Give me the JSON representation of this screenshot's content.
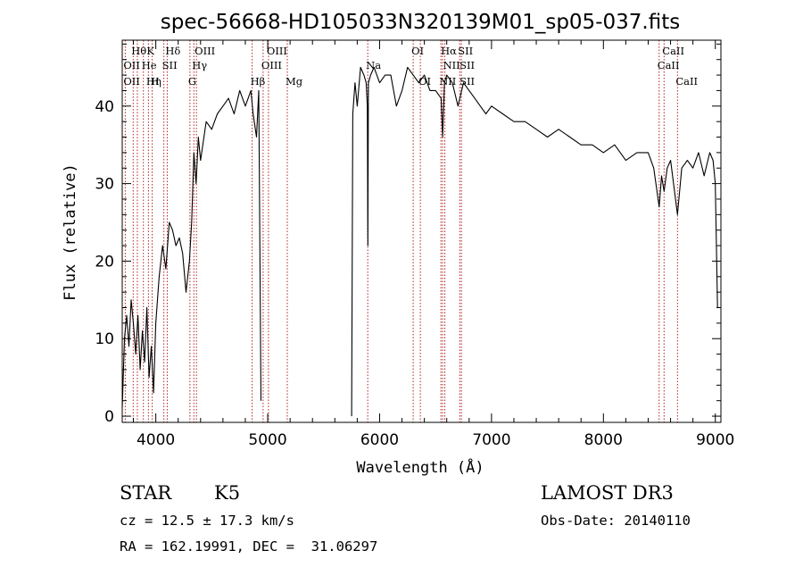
{
  "chart_data": {
    "type": "line",
    "title": "spec-56668-HD105033N320139M01_sp05-037.fits",
    "xlabel": "Wavelength (Å)",
    "ylabel": "Flux (relative)",
    "xlim": [
      3700,
      9050
    ],
    "ylim": [
      -0.8,
      48.5
    ],
    "xticks": [
      4000,
      5000,
      6000,
      7000,
      8000,
      9000
    ],
    "yticks": [
      0,
      10,
      20,
      30,
      40
    ],
    "grid": false,
    "series": [
      {
        "x": [
          3700,
          3720,
          3740,
          3760,
          3780,
          3800,
          3820,
          3840,
          3860,
          3880,
          3900,
          3920,
          3940,
          3960,
          3980,
          4000,
          4030,
          4060,
          4090,
          4120,
          4150,
          4180,
          4210,
          4240,
          4270,
          4300,
          4320,
          4340,
          4360,
          4380,
          4400,
          4450,
          4500,
          4550,
          4600,
          4650,
          4700,
          4750,
          4800,
          4850,
          4870,
          4900,
          4920,
          4940,
          4960,
          4980,
          5000,
          5050,
          5100,
          5200,
          5400,
          5600,
          5740,
          5750,
          5760,
          5780,
          5800,
          5830,
          5860,
          5880,
          5890,
          5895,
          5900,
          5920,
          5950,
          6000,
          6050,
          6100,
          6150,
          6200,
          6250,
          6300,
          6350,
          6400,
          6450,
          6500,
          6550,
          6563,
          6580,
          6600,
          6650,
          6700,
          6750,
          6800,
          6850,
          6900,
          6950,
          7000,
          7100,
          7200,
          7300,
          7400,
          7500,
          7600,
          7700,
          7800,
          7900,
          8000,
          8100,
          8200,
          8300,
          8400,
          8450,
          8498,
          8520,
          8542,
          8570,
          8600,
          8662,
          8700,
          8750,
          8800,
          8850,
          8900,
          8950,
          8980,
          9000,
          9020
        ],
        "y": [
          1,
          10,
          13,
          9,
          15,
          12,
          8,
          13,
          6,
          11,
          7,
          14,
          5,
          9,
          3,
          12,
          18,
          22,
          19,
          25,
          24,
          22,
          23,
          21,
          16,
          20,
          25,
          34,
          30,
          36,
          33,
          38,
          37,
          39,
          40,
          41,
          39,
          42,
          40,
          42,
          39,
          36,
          42,
          2,
          null,
          null,
          null,
          null,
          null,
          null,
          null,
          null,
          null,
          0,
          39,
          43,
          40,
          45,
          44,
          43,
          40,
          22,
          43,
          44,
          45,
          43,
          44,
          44,
          40,
          42,
          45,
          44,
          43,
          44,
          42,
          42,
          41,
          36,
          43,
          44,
          43,
          40,
          43,
          42,
          41,
          40,
          39,
          40,
          39,
          38,
          38,
          37,
          36,
          37,
          36,
          35,
          35,
          34,
          35,
          33,
          34,
          34,
          32,
          27,
          31,
          29,
          32,
          33,
          26,
          32,
          33,
          32,
          34,
          31,
          34,
          33,
          30,
          14
        ]
      }
    ],
    "line_markers": [
      {
        "label": "Hθ",
        "wavelength": 3798,
        "row": 1,
        "offset": 0
      },
      {
        "label": "OII",
        "wavelength": 3727,
        "row": 2,
        "offset": 0
      },
      {
        "label": "OII",
        "wavelength": 3727,
        "row": 3,
        "offset": 0
      },
      {
        "label": "Hη",
        "wavelength": 3835,
        "row": 3,
        "offset": 12
      },
      {
        "label": "He",
        "wavelength": 3889,
        "row": 2,
        "offset": 0
      },
      {
        "label": "K",
        "wavelength": 3934,
        "row": 1,
        "offset": 0
      },
      {
        "label": "H",
        "wavelength": 3968,
        "row": 3,
        "offset": 0
      },
      {
        "label": "SII",
        "wavelength": 4072,
        "row": 2,
        "offset": 0
      },
      {
        "label": "Hδ",
        "wavelength": 4102,
        "row": 1,
        "offset": 0
      },
      {
        "label": "G",
        "wavelength": 4305,
        "row": 3,
        "offset": 0
      },
      {
        "label": "Hγ",
        "wavelength": 4340,
        "row": 2,
        "offset": 0
      },
      {
        "label": "OIII",
        "wavelength": 4363,
        "row": 1,
        "offset": 0
      },
      {
        "label": "Hβ",
        "wavelength": 4861,
        "row": 3,
        "offset": 0
      },
      {
        "label": "OIII",
        "wavelength": 4959,
        "row": 2,
        "offset": 0
      },
      {
        "label": "OIII",
        "wavelength": 5007,
        "row": 1,
        "offset": 0
      },
      {
        "label": "Mg",
        "wavelength": 5175,
        "row": 3,
        "offset": 0
      },
      {
        "label": "Na",
        "wavelength": 5894,
        "row": 2,
        "offset": 0
      },
      {
        "label": "OI",
        "wavelength": 6300,
        "row": 1,
        "offset": 0
      },
      {
        "label": "OI",
        "wavelength": 6364,
        "row": 3,
        "offset": 0
      },
      {
        "label": "NII",
        "wavelength": 6548,
        "row": 3,
        "offset": 0
      },
      {
        "label": "Hα",
        "wavelength": 6563,
        "row": 1,
        "offset": 0
      },
      {
        "label": "NII",
        "wavelength": 6583,
        "row": 2,
        "offset": 0
      },
      {
        "label": "SII",
        "wavelength": 6716,
        "row": 1,
        "offset": 0
      },
      {
        "label": "SII",
        "wavelength": 6731,
        "row": 2,
        "offset": 0
      },
      {
        "label": "SII",
        "wavelength": 6731,
        "row": 3,
        "offset": 0
      },
      {
        "label": "CaII",
        "wavelength": 8498,
        "row": 2,
        "offset": 0
      },
      {
        "label": "CaII",
        "wavelength": 8542,
        "row": 1,
        "offset": 0
      },
      {
        "label": "CaII",
        "wavelength": 8662,
        "row": 3,
        "offset": 0
      }
    ]
  },
  "info": {
    "class": "STAR",
    "subclass": "K5",
    "survey": "LAMOST DR3",
    "cz": "cz = 12.5 ± 17.3 km/s",
    "obs_date": "Obs-Date: 20140110",
    "radec": "RA = 162.19991, DEC =  31.06297"
  }
}
